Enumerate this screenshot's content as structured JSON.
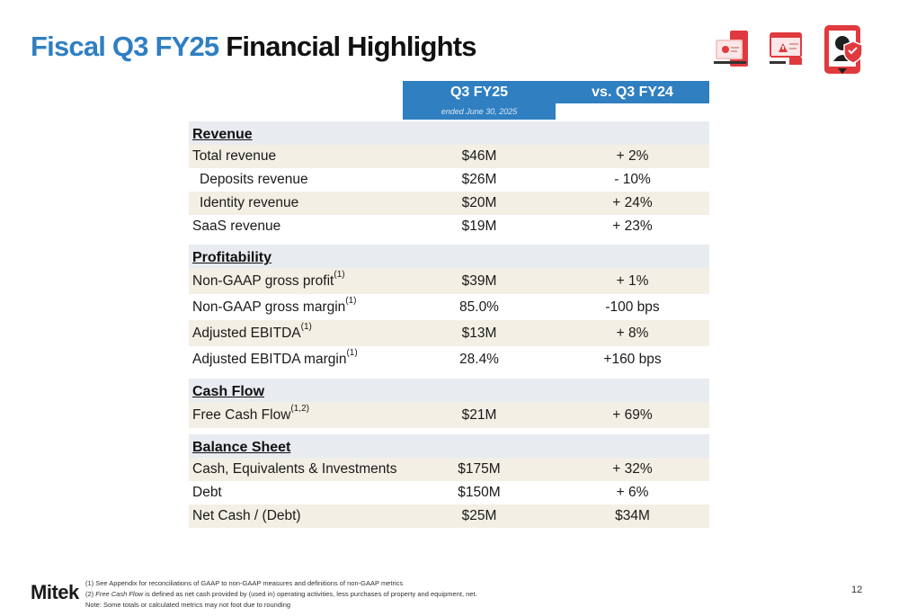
{
  "title": {
    "part1": "Fiscal Q3 FY25",
    "part2": "Financial Highlights"
  },
  "header": {
    "col1": "Q3 FY25",
    "col2": "vs. Q3 FY24",
    "col1_note": "ended June 30, 2025"
  },
  "sections": {
    "revenue": "Revenue",
    "profitability": "Profitability",
    "cash_flow": "Cash Flow",
    "balance_sheet": "Balance Sheet"
  },
  "rows": {
    "total_revenue": {
      "label": "Total revenue",
      "v1": "$46M",
      "v2": "+ 2%"
    },
    "deposits_revenue": {
      "label": "Deposits revenue",
      "v1": "$26M",
      "v2": "- 10%"
    },
    "identity_revenue": {
      "label": "Identity revenue",
      "v1": "$20M",
      "v2": "+ 24%"
    },
    "saas_revenue": {
      "label": "SaaS revenue",
      "v1": "$19M",
      "v2": "+ 23%"
    },
    "gross_profit": {
      "label": "Non-GAAP gross profit",
      "sup": "(1)",
      "v1": "$39M",
      "v2": "+ 1%"
    },
    "gross_margin": {
      "label": "Non-GAAP gross margin",
      "sup": "(1)",
      "v1": "85.0%",
      "v2": "-100 bps"
    },
    "adj_ebitda": {
      "label": "Adjusted EBITDA",
      "sup": "(1)",
      "v1": "$13M",
      "v2": "+ 8%"
    },
    "adj_ebitda_margin": {
      "label": "Adjusted EBITDA margin",
      "sup": "(1)",
      "v1": "28.4%",
      "v2": "+160 bps"
    },
    "fcf": {
      "label": "Free Cash Flow",
      "sup": "(1,2)",
      "v1": "$21M",
      "v2": "+ 69%"
    },
    "cash": {
      "label": "Cash, Equivalents & Investments",
      "v1": "$175M",
      "v2": "+ 32%"
    },
    "debt": {
      "label": "Debt",
      "v1": "$150M",
      "v2": "+ 6%"
    },
    "net_cash": {
      "label": "Net Cash / (Debt)",
      "v1": "$25M",
      "v2": "$34M"
    }
  },
  "footer": {
    "logo": "Mitek",
    "note1": "(1) See Appendix for reconciliations of GAAP to non-GAAP measures and definitions of non-GAAP metrics",
    "note2_prefix": "(2) ",
    "note2_term": "Free Cash Flow",
    "note2_rest": " is defined as net cash provided by (used in) operating activities, less purchases of property and equipment, net.",
    "note3": "Note: Some totals or calculated metrics may not foot due to rounding",
    "page": "12"
  },
  "colors": {
    "accent_blue": "#2f7fc1",
    "accent_red": "#e03a3e",
    "row_shade": "#f3efe4",
    "section_bg": "#e8ebef"
  },
  "icons": [
    "check-card-icon",
    "alert-id-card-icon",
    "phone-face-shield-icon"
  ]
}
